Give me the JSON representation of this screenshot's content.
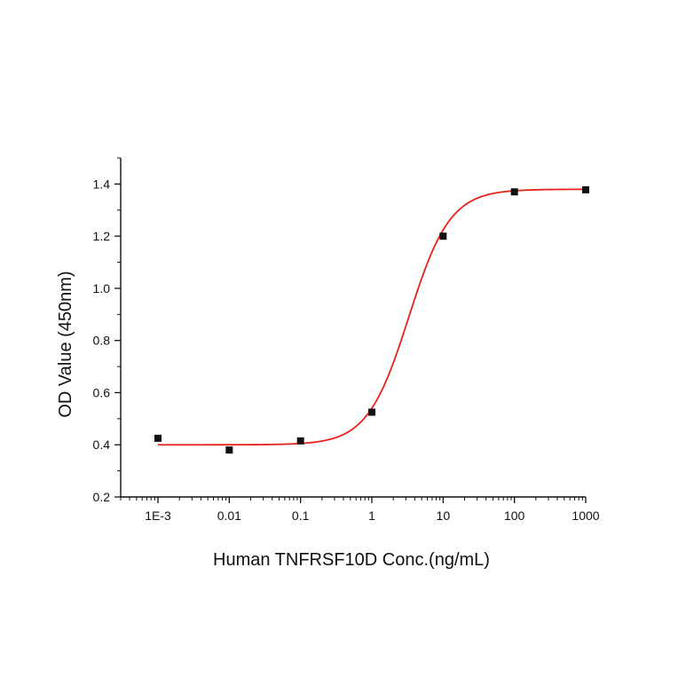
{
  "chart_data": {
    "type": "scatter",
    "title": "",
    "xlabel": "Human TNFRSF10D Conc.(ng/mL)",
    "ylabel": "OD Value (450nm)",
    "x_scale": "log",
    "xlim": [
      0.0003,
      1000
    ],
    "ylim": [
      0.2,
      1.5
    ],
    "x_ticks": [
      0.001,
      0.01,
      0.1,
      1,
      10,
      100,
      1000
    ],
    "x_tick_labels": [
      "1E-3",
      "0.01",
      "0.1",
      "1",
      "10",
      "100",
      "1000"
    ],
    "y_ticks": [
      0.2,
      0.4,
      0.6,
      0.8,
      1.0,
      1.2,
      1.4
    ],
    "y_tick_labels": [
      "0.2",
      "0.4",
      "0.6",
      "0.8",
      "1.0",
      "1.2",
      "1.4"
    ],
    "grid": false,
    "legend": "none",
    "series": [
      {
        "x": [
          0.001,
          0.01,
          0.1,
          1,
          10,
          100,
          1000
        ],
        "y": [
          0.425,
          0.38,
          0.415,
          0.525,
          1.2,
          1.37,
          1.378
        ],
        "marker": "square",
        "color": "#111111"
      }
    ],
    "fit_curve": {
      "model": "4PL",
      "bottom": 0.4,
      "top": 1.38,
      "ec50": 3.3,
      "hill": 1.5,
      "color": "#e8221b"
    }
  }
}
